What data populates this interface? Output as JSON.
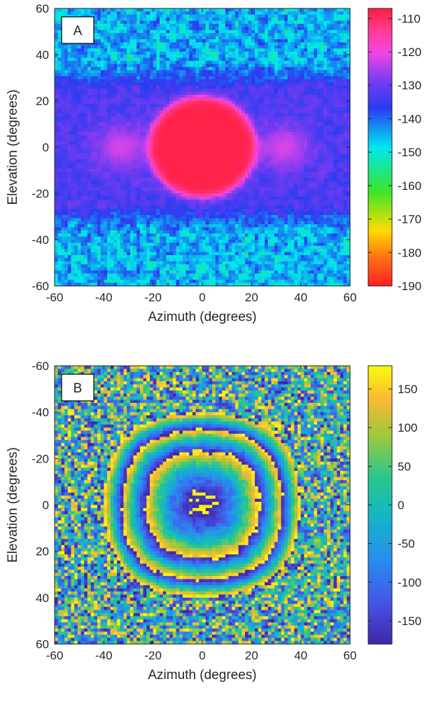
{
  "chart_data": [
    {
      "type": "heatmap",
      "panel_label": "A",
      "xlabel": "Azimuth (degrees)",
      "ylabel": "Elevation (degrees)",
      "xlim": [
        -60,
        60
      ],
      "ylim": [
        -60,
        60
      ],
      "y_direction": "normal",
      "x_ticks": [
        "-60",
        "-40",
        "-20",
        "0",
        "20",
        "40",
        "60"
      ],
      "y_ticks": [
        "60",
        "40",
        "20",
        "0",
        "-20",
        "-40",
        "-60"
      ],
      "colormap": "jet",
      "color_range": [
        -190,
        -107
      ],
      "colorbar_ticks": [
        "-110",
        "-120",
        "-130",
        "-140",
        "-150",
        "-160",
        "-170",
        "-180",
        "-190"
      ],
      "features": [
        {
          "type": "main_lobe",
          "azimuth": 0,
          "elevation": 0,
          "radius": 22,
          "value": -108
        },
        {
          "type": "side_lobe",
          "azimuth": -33,
          "elevation": 0,
          "radius": 12,
          "value": -122
        },
        {
          "type": "side_lobe",
          "azimuth": 33,
          "elevation": 0,
          "radius": 12,
          "value": -122
        },
        {
          "type": "background_band",
          "elevation_range": [
            -25,
            25
          ],
          "value": -130
        },
        {
          "type": "noise_floor",
          "value": -145
        }
      ]
    },
    {
      "type": "heatmap",
      "panel_label": "B",
      "xlabel": "Azimuth (degrees)",
      "ylabel": "Elevation (degrees)",
      "xlim": [
        -60,
        60
      ],
      "ylim": [
        -60,
        60
      ],
      "y_direction": "reverse",
      "x_ticks": [
        "-60",
        "-40",
        "-20",
        "0",
        "20",
        "40",
        "60"
      ],
      "y_ticks": [
        "-60",
        "-40",
        "-20",
        "0",
        "20",
        "40",
        "60"
      ],
      "colormap": "parula",
      "color_range": [
        -180,
        180
      ],
      "colorbar_ticks": [
        "150",
        "100",
        "50",
        "0",
        "-50",
        "-100",
        "-150"
      ],
      "features": [
        {
          "type": "phase_rings",
          "center_azimuth": 0,
          "center_elevation": 0,
          "ring_radii": [
            23,
            34,
            44,
            53
          ],
          "wrap_range": [
            -180,
            180
          ]
        }
      ]
    }
  ]
}
